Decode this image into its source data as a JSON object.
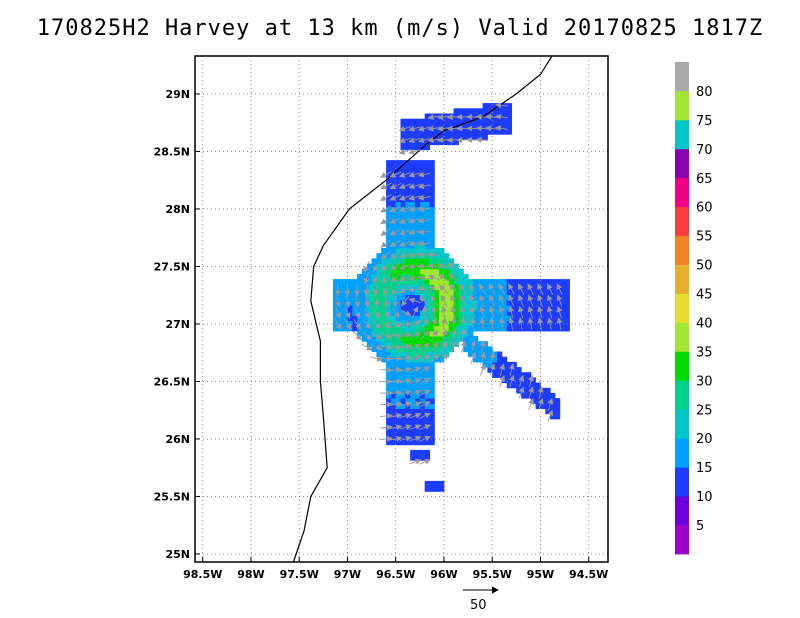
{
  "title": "170825H2 Harvey at 13 km (m/s) Valid 20170825 1817Z",
  "map": {
    "lat_range": [
      24.93,
      29.33
    ],
    "lon_range": [
      -98.58,
      -94.3
    ],
    "lat_ticks": [
      {
        "value": 29.0,
        "label": "29N"
      },
      {
        "value": 28.5,
        "label": "28.5N"
      },
      {
        "value": 28.0,
        "label": "28N"
      },
      {
        "value": 27.5,
        "label": "27.5N"
      },
      {
        "value": 27.0,
        "label": "27N"
      },
      {
        "value": 26.5,
        "label": "26.5N"
      },
      {
        "value": 26.0,
        "label": "26N"
      },
      {
        "value": 25.5,
        "label": "25.5N"
      },
      {
        "value": 25.0,
        "label": "25N"
      }
    ],
    "lon_ticks": [
      {
        "value": -98.5,
        "label": "98.5W"
      },
      {
        "value": -98.0,
        "label": "98W"
      },
      {
        "value": -97.5,
        "label": "97.5W"
      },
      {
        "value": -97.0,
        "label": "97W"
      },
      {
        "value": -96.5,
        "label": "96.5W"
      },
      {
        "value": -96.0,
        "label": "96W"
      },
      {
        "value": -95.5,
        "label": "95.5W"
      },
      {
        "value": -95.0,
        "label": "95W"
      },
      {
        "value": -94.5,
        "label": "94.5W"
      }
    ],
    "grid": true,
    "storm_center": {
      "lon": -96.35,
      "lat": 27.14
    },
    "coastline": [
      [
        -97.56,
        24.93
      ],
      [
        -97.45,
        25.2
      ],
      [
        -97.38,
        25.5
      ],
      [
        -97.21,
        25.75
      ],
      [
        -97.25,
        26.2
      ],
      [
        -97.28,
        26.5
      ],
      [
        -97.28,
        26.85
      ],
      [
        -97.38,
        27.2
      ],
      [
        -97.35,
        27.5
      ],
      [
        -97.25,
        27.68
      ],
      [
        -96.98,
        28.0
      ],
      [
        -96.6,
        28.25
      ],
      [
        -96.2,
        28.55
      ],
      [
        -96.0,
        28.68
      ],
      [
        -95.6,
        28.8
      ],
      [
        -95.25,
        29.0
      ],
      [
        -95.0,
        29.17
      ],
      [
        -94.88,
        29.33
      ]
    ]
  },
  "colorbar": {
    "labels": [
      "5",
      "10",
      "15",
      "20",
      "25",
      "30",
      "35",
      "40",
      "45",
      "50",
      "55",
      "60",
      "65",
      "70",
      "75",
      "80"
    ],
    "colors": [
      "#a000c8",
      "#6e00dc",
      "#1e3cff",
      "#00a0ff",
      "#00c8c8",
      "#00d28c",
      "#00dc00",
      "#a0e632",
      "#e6dc32",
      "#e6af2d",
      "#f08228",
      "#fa3c3c",
      "#f00082",
      "#8c00b4",
      "#00c8c8",
      "#a0e632",
      "#aaaaaa"
    ]
  },
  "vector_reference": {
    "label": "50",
    "speed_ms": 50
  }
}
